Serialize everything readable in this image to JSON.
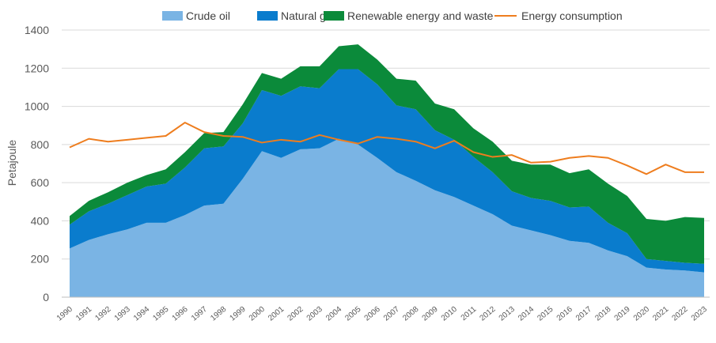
{
  "chart_data": {
    "type": "area",
    "title": "",
    "xlabel": "",
    "ylabel": "Petajoule",
    "ylim": [
      0,
      1400
    ],
    "yticks": [
      0,
      200,
      400,
      600,
      800,
      1000,
      1200,
      1400
    ],
    "grid": true,
    "legend_position": "top",
    "x": [
      "1990",
      "1991",
      "1992",
      "1993",
      "1994",
      "1995",
      "1996",
      "1997",
      "1998",
      "1999",
      "2000",
      "2001",
      "2002",
      "2003",
      "2004",
      "2005",
      "2006",
      "2007",
      "2008",
      "2009",
      "2010",
      "2011",
      "2012",
      "2013",
      "2014",
      "2015",
      "2016",
      "2017",
      "2018",
      "2019",
      "2020",
      "2021",
      "2022",
      "2023"
    ],
    "series": [
      {
        "name": "Crude oil",
        "kind": "stacked-area",
        "color": "#7ab4e4",
        "values": [
          255,
          300,
          330,
          355,
          390,
          390,
          430,
          480,
          490,
          620,
          765,
          730,
          775,
          780,
          830,
          800,
          730,
          655,
          610,
          560,
          525,
          480,
          435,
          375,
          350,
          325,
          295,
          285,
          245,
          215,
          155,
          145,
          140,
          130
        ]
      },
      {
        "name": "Natural gas",
        "kind": "stacked-area",
        "color": "#0a7ccd",
        "values": [
          125,
          150,
          160,
          180,
          190,
          205,
          250,
          300,
          300,
          290,
          320,
          325,
          330,
          315,
          365,
          395,
          385,
          350,
          375,
          315,
          300,
          255,
          220,
          180,
          170,
          180,
          175,
          190,
          145,
          120,
          45,
          45,
          40,
          45
        ]
      },
      {
        "name": "Renewable energy and waste",
        "kind": "stacked-area",
        "color": "#0b8a3a",
        "values": [
          45,
          55,
          60,
          65,
          60,
          75,
          80,
          80,
          75,
          100,
          90,
          90,
          105,
          115,
          120,
          130,
          130,
          140,
          150,
          140,
          160,
          150,
          160,
          160,
          175,
          190,
          180,
          195,
          205,
          195,
          210,
          210,
          240,
          240
        ]
      },
      {
        "name": "Energy consumption",
        "kind": "line",
        "color": "#ee7d1e",
        "values": [
          785,
          830,
          815,
          825,
          835,
          845,
          915,
          865,
          845,
          840,
          810,
          825,
          815,
          850,
          825,
          805,
          840,
          830,
          815,
          780,
          820,
          760,
          735,
          745,
          705,
          710,
          730,
          740,
          730,
          690,
          645,
          695,
          655,
          655
        ]
      }
    ]
  }
}
